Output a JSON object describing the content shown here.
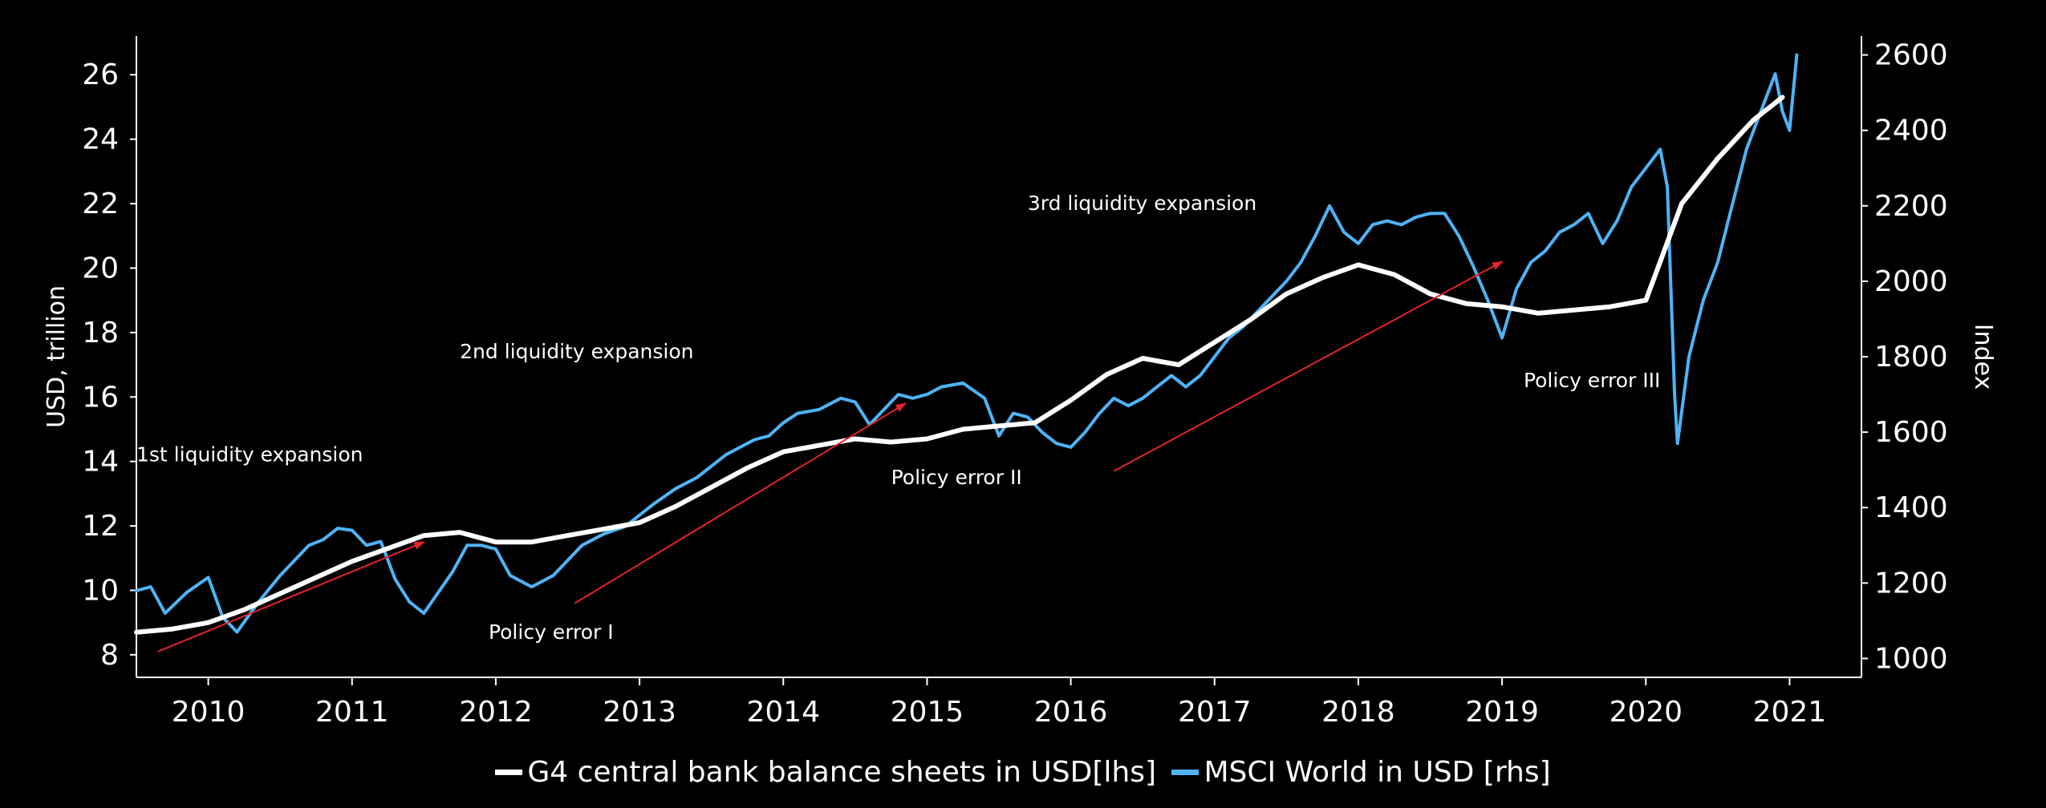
{
  "chart_data": {
    "type": "line",
    "title": "",
    "y_left_label": "USD, trillion",
    "y_right_label": "Index",
    "x_ticks": [
      "2010",
      "2011",
      "2012",
      "2013",
      "2014",
      "2015",
      "2016",
      "2017",
      "2018",
      "2019",
      "2020",
      "2021"
    ],
    "y_left_ticks": [
      "8",
      "10",
      "12",
      "14",
      "16",
      "18",
      "20",
      "22",
      "24",
      "26"
    ],
    "y_right_ticks": [
      "1000",
      "1200",
      "1400",
      "1600",
      "1800",
      "2000",
      "2200",
      "2400",
      "2600"
    ],
    "x_range": [
      2009.5,
      2021.5
    ],
    "y_left_range": [
      7.3,
      27.2
    ],
    "y_right_range": [
      950,
      2650
    ],
    "grid": false,
    "legend_position": "bottom-center",
    "series": [
      {
        "name": "G4 central bank balance sheets in USD[lhs]",
        "axis": "left",
        "color": "#ffffff",
        "points": [
          [
            2009.5,
            8.7
          ],
          [
            2009.75,
            8.8
          ],
          [
            2010.0,
            9.0
          ],
          [
            2010.25,
            9.4
          ],
          [
            2010.5,
            9.9
          ],
          [
            2010.75,
            10.4
          ],
          [
            2011.0,
            10.9
          ],
          [
            2011.25,
            11.3
          ],
          [
            2011.5,
            11.7
          ],
          [
            2011.75,
            11.8
          ],
          [
            2012.0,
            11.5
          ],
          [
            2012.25,
            11.5
          ],
          [
            2012.5,
            11.7
          ],
          [
            2012.75,
            11.9
          ],
          [
            2013.0,
            12.1
          ],
          [
            2013.25,
            12.6
          ],
          [
            2013.5,
            13.2
          ],
          [
            2013.75,
            13.8
          ],
          [
            2014.0,
            14.3
          ],
          [
            2014.25,
            14.5
          ],
          [
            2014.5,
            14.7
          ],
          [
            2014.75,
            14.6
          ],
          [
            2015.0,
            14.7
          ],
          [
            2015.25,
            15.0
          ],
          [
            2015.5,
            15.1
          ],
          [
            2015.75,
            15.2
          ],
          [
            2016.0,
            15.9
          ],
          [
            2016.25,
            16.7
          ],
          [
            2016.5,
            17.2
          ],
          [
            2016.75,
            17.0
          ],
          [
            2017.0,
            17.7
          ],
          [
            2017.25,
            18.4
          ],
          [
            2017.5,
            19.2
          ],
          [
            2017.75,
            19.7
          ],
          [
            2018.0,
            20.1
          ],
          [
            2018.25,
            19.8
          ],
          [
            2018.5,
            19.2
          ],
          [
            2018.75,
            18.9
          ],
          [
            2019.0,
            18.8
          ],
          [
            2019.25,
            18.6
          ],
          [
            2019.5,
            18.7
          ],
          [
            2019.75,
            18.8
          ],
          [
            2020.0,
            19.0
          ],
          [
            2020.1,
            20.2
          ],
          [
            2020.25,
            22.0
          ],
          [
            2020.5,
            23.4
          ],
          [
            2020.75,
            24.6
          ],
          [
            2020.95,
            25.3
          ]
        ]
      },
      {
        "name": "MSCI World in USD [rhs]",
        "axis": "right",
        "color": "#4fb3f6",
        "points": [
          [
            2009.5,
            1180
          ],
          [
            2009.6,
            1190
          ],
          [
            2009.7,
            1120
          ],
          [
            2009.85,
            1175
          ],
          [
            2010.0,
            1215
          ],
          [
            2010.1,
            1110
          ],
          [
            2010.2,
            1070
          ],
          [
            2010.35,
            1150
          ],
          [
            2010.5,
            1220
          ],
          [
            2010.6,
            1260
          ],
          [
            2010.7,
            1300
          ],
          [
            2010.8,
            1315
          ],
          [
            2010.9,
            1345
          ],
          [
            2011.0,
            1340
          ],
          [
            2011.1,
            1300
          ],
          [
            2011.2,
            1310
          ],
          [
            2011.3,
            1210
          ],
          [
            2011.4,
            1150
          ],
          [
            2011.5,
            1120
          ],
          [
            2011.6,
            1175
          ],
          [
            2011.7,
            1230
          ],
          [
            2011.8,
            1300
          ],
          [
            2011.9,
            1300
          ],
          [
            2012.0,
            1290
          ],
          [
            2012.1,
            1220
          ],
          [
            2012.25,
            1190
          ],
          [
            2012.4,
            1220
          ],
          [
            2012.5,
            1260
          ],
          [
            2012.6,
            1300
          ],
          [
            2012.75,
            1330
          ],
          [
            2012.9,
            1350
          ],
          [
            2013.0,
            1380
          ],
          [
            2013.1,
            1410
          ],
          [
            2013.25,
            1450
          ],
          [
            2013.4,
            1480
          ],
          [
            2013.5,
            1510
          ],
          [
            2013.6,
            1540
          ],
          [
            2013.7,
            1560
          ],
          [
            2013.8,
            1580
          ],
          [
            2013.9,
            1590
          ],
          [
            2014.0,
            1625
          ],
          [
            2014.1,
            1650
          ],
          [
            2014.25,
            1660
          ],
          [
            2014.4,
            1690
          ],
          [
            2014.5,
            1680
          ],
          [
            2014.6,
            1620
          ],
          [
            2014.7,
            1660
          ],
          [
            2014.8,
            1700
          ],
          [
            2014.9,
            1690
          ],
          [
            2015.0,
            1700
          ],
          [
            2015.1,
            1720
          ],
          [
            2015.25,
            1730
          ],
          [
            2015.4,
            1690
          ],
          [
            2015.5,
            1590
          ],
          [
            2015.6,
            1650
          ],
          [
            2015.7,
            1640
          ],
          [
            2015.8,
            1600
          ],
          [
            2015.9,
            1570
          ],
          [
            2016.0,
            1560
          ],
          [
            2016.1,
            1600
          ],
          [
            2016.2,
            1650
          ],
          [
            2016.3,
            1690
          ],
          [
            2016.4,
            1670
          ],
          [
            2016.5,
            1690
          ],
          [
            2016.6,
            1720
          ],
          [
            2016.7,
            1750
          ],
          [
            2016.8,
            1720
          ],
          [
            2016.9,
            1750
          ],
          [
            2017.0,
            1800
          ],
          [
            2017.1,
            1850
          ],
          [
            2017.2,
            1880
          ],
          [
            2017.3,
            1920
          ],
          [
            2017.4,
            1960
          ],
          [
            2017.5,
            2000
          ],
          [
            2017.6,
            2050
          ],
          [
            2017.7,
            2120
          ],
          [
            2017.8,
            2200
          ],
          [
            2017.9,
            2130
          ],
          [
            2018.0,
            2100
          ],
          [
            2018.1,
            2150
          ],
          [
            2018.2,
            2160
          ],
          [
            2018.3,
            2150
          ],
          [
            2018.4,
            2170
          ],
          [
            2018.5,
            2180
          ],
          [
            2018.6,
            2180
          ],
          [
            2018.7,
            2120
          ],
          [
            2018.8,
            2040
          ],
          [
            2018.9,
            1950
          ],
          [
            2019.0,
            1850
          ],
          [
            2019.1,
            1980
          ],
          [
            2019.2,
            2050
          ],
          [
            2019.3,
            2080
          ],
          [
            2019.4,
            2130
          ],
          [
            2019.5,
            2150
          ],
          [
            2019.6,
            2180
          ],
          [
            2019.7,
            2100
          ],
          [
            2019.8,
            2160
          ],
          [
            2019.9,
            2250
          ],
          [
            2020.0,
            2300
          ],
          [
            2020.1,
            2350
          ],
          [
            2020.15,
            2250
          ],
          [
            2020.2,
            1700
          ],
          [
            2020.22,
            1570
          ],
          [
            2020.3,
            1800
          ],
          [
            2020.4,
            1950
          ],
          [
            2020.5,
            2050
          ],
          [
            2020.6,
            2200
          ],
          [
            2020.7,
            2350
          ],
          [
            2020.8,
            2450
          ],
          [
            2020.9,
            2550
          ],
          [
            2020.95,
            2450
          ],
          [
            2021.0,
            2400
          ],
          [
            2021.05,
            2600
          ]
        ]
      }
    ],
    "annotations": [
      {
        "text": "1st liquidity expansion",
        "x": 2009.5,
        "y": 14.0
      },
      {
        "text": "2nd liquidity expansion",
        "x": 2011.75,
        "y": 17.2
      },
      {
        "text": "3rd liquidity expansion",
        "x": 2015.7,
        "y": 21.8
      },
      {
        "text": "Policy error I",
        "x": 2011.95,
        "y": 8.5
      },
      {
        "text": "Policy error II",
        "x": 2014.75,
        "y": 13.3
      },
      {
        "text": "Policy error III",
        "x": 2019.15,
        "y": 16.3
      }
    ],
    "arrows": [
      {
        "x1": 2009.65,
        "y1": 8.1,
        "x2": 2011.5,
        "y2": 11.5
      },
      {
        "x1": 2012.55,
        "y1": 9.6,
        "x2": 2014.85,
        "y2": 15.8
      },
      {
        "x1": 2016.3,
        "y1": 13.7,
        "x2": 2019.0,
        "y2": 20.2
      }
    ],
    "arrow_color": "#e5232a"
  },
  "legend": {
    "items": [
      {
        "label": "G4 central bank balance sheets in USD[lhs]",
        "color": "#ffffff"
      },
      {
        "label": "MSCI World in USD [rhs]",
        "color": "#4fb3f6"
      }
    ]
  }
}
